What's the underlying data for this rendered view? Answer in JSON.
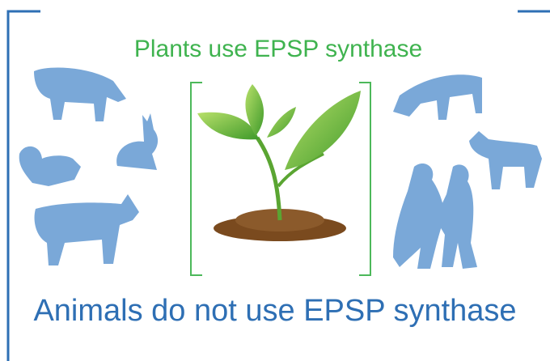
{
  "top_label": "Plants use EPSP synthase",
  "bottom_label": "Animals do not use EPSP synthase"
}
